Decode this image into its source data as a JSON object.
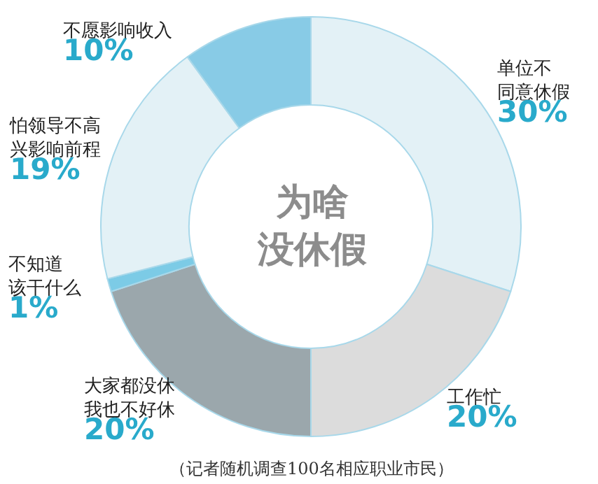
{
  "chart_data": {
    "type": "donut",
    "title": "为啥没休假",
    "categories": [
      "单位不同意休假",
      "工作忙",
      "大家都没休我也不好休",
      "不知道该干什么",
      "怕领导不高兴影响前程",
      "不愿影响收入"
    ],
    "values": [
      30,
      20,
      20,
      1,
      19,
      10
    ],
    "value_labels": [
      "30%",
      "20%",
      "20%",
      "1%",
      "19%",
      "10%"
    ],
    "colors": [
      "#e3f1f6",
      "#dcdcdc",
      "#9ba7ac",
      "#7ccbe6",
      "#e3f1f6",
      "#88cbe6"
    ],
    "annotations": [
      "（记者随机调查100名相应职业市民）"
    ],
    "legend": false
  }
}
